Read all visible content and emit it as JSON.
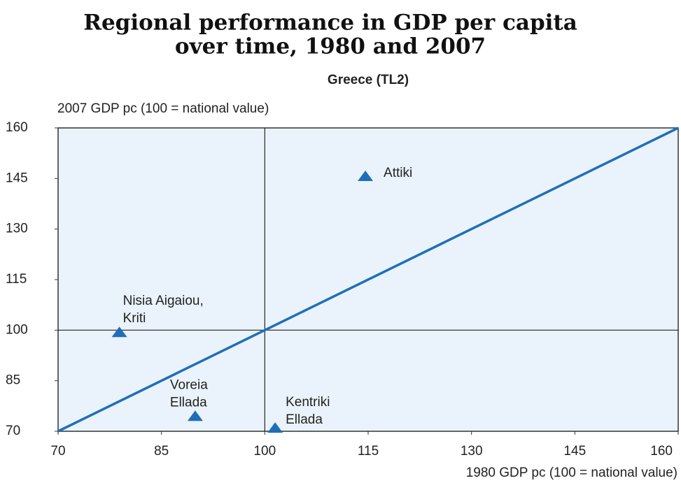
{
  "chart_data": {
    "type": "scatter",
    "title": [
      "Regional performance in GDP per capita",
      "over time, 1980 and 2007"
    ],
    "subtitle": "Greece (TL2)",
    "ylabel": "2007 GDP pc (100 = national value)",
    "xlabel": "1980 GDP pc (100 = national value)",
    "xlim": [
      70,
      160
    ],
    "ylim": [
      70,
      160
    ],
    "xticks": [
      70,
      85,
      100,
      115,
      130,
      145,
      160
    ],
    "yticks": [
      70,
      85,
      100,
      115,
      130,
      145,
      160
    ],
    "reference_x": 100,
    "reference_y": 100,
    "identity_line": true,
    "color": "#1f6fb8",
    "background": "#eaf3fb",
    "point_labels": [
      [
        "Attiki"
      ],
      [
        "Nisia Aigaiou,",
        "Kriti"
      ],
      [
        "Voreia",
        "Ellada"
      ],
      [
        "Kentriki",
        "Ellada"
      ]
    ],
    "x": [
      114.6,
      78.9,
      89.9,
      101.5
    ],
    "values": [
      145.7,
      99.4,
      74.5,
      71
    ]
  }
}
